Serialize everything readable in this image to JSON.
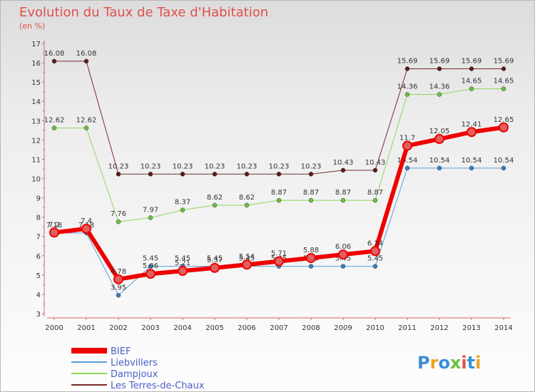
{
  "title": "Evolution du Taux de Taxe d'Habitation",
  "unit_label": "(en %)",
  "logo_text": "Proxiti",
  "colors": {
    "title": "#e0504a",
    "grid": "#cccccc",
    "bief": "#ee0000",
    "bief_dot": "#e06060",
    "liebvillers": "#5a9fd6",
    "liebvillers_dot": "#3a7fc4",
    "dampjoux": "#8fd65a",
    "dampjoux_dot": "#6cc23a",
    "terres": "#7a2a2a",
    "terres_dot": "#5c1a1a"
  },
  "chart_data": {
    "type": "line",
    "title": "Evolution du Taux de Taxe d'Habitation",
    "ylabel": "(en %)",
    "xlabel": "",
    "categories": [
      "2000",
      "2001",
      "2002",
      "2003",
      "2004",
      "2005",
      "2006",
      "2007",
      "2008",
      "2009",
      "2010",
      "2011",
      "2012",
      "2013",
      "2014"
    ],
    "ylim": [
      3,
      17
    ],
    "yticks": [
      "3",
      "4",
      "5",
      "6",
      "7",
      "8",
      "9",
      "10",
      "11",
      "12",
      "13",
      "14",
      "15",
      "16",
      "17"
    ],
    "grid": false,
    "legend": "bottom-left",
    "series": [
      {
        "name": "Les Terres-de-Chaux",
        "color_key": "terres",
        "width": 1,
        "values": [
          16.08,
          16.08,
          10.23,
          10.23,
          10.23,
          10.23,
          10.23,
          10.23,
          10.23,
          10.43,
          10.43,
          15.69,
          15.69,
          15.69,
          15.69
        ],
        "labels": [
          "16.08",
          "16.08",
          "10.23",
          "10.23",
          "10.23",
          "10.23",
          "10.23",
          "10.23",
          "10.23",
          "10.43",
          "10.43",
          "15.69",
          "15.69",
          "15.69",
          "15.69"
        ]
      },
      {
        "name": "Dampjoux",
        "color_key": "dampjoux",
        "width": 1,
        "values": [
          12.62,
          12.62,
          7.76,
          7.97,
          8.37,
          8.62,
          8.62,
          8.87,
          8.87,
          8.87,
          8.87,
          14.36,
          14.36,
          14.65,
          14.65
        ],
        "labels": [
          "12.62",
          "12.62",
          "7.76",
          "7.97",
          "8.37",
          "8.62",
          "8.62",
          "8.87",
          "8.87",
          "8.87",
          "8.87",
          "14.36",
          "14.36",
          "14.65",
          "14.65"
        ]
      },
      {
        "name": "Liebvillers",
        "color_key": "liebvillers",
        "width": 1,
        "values": [
          7.18,
          7.18,
          3.95,
          5.45,
          5.45,
          5.45,
          5.45,
          5.45,
          5.45,
          5.45,
          5.45,
          10.54,
          10.54,
          10.54,
          10.54
        ],
        "labels": [
          "7.18",
          "7.18",
          "3.95",
          "5.45",
          "5.45",
          "5.45",
          "5.45",
          "5.45",
          "5.45",
          "5.45",
          "5.45",
          "10.54",
          "10.54",
          "10.54",
          "10.54"
        ]
      },
      {
        "name": "BIEF",
        "color_key": "bief",
        "width": 6,
        "values": [
          7.2,
          7.4,
          4.78,
          5.06,
          5.21,
          5.37,
          5.54,
          5.71,
          5.88,
          6.06,
          6.24,
          11.7,
          12.05,
          12.41,
          12.65
        ],
        "labels": [
          "7.2",
          "7.4",
          "4.78",
          "5.06",
          "5.21",
          "5.37",
          "5.54",
          "5.71",
          "5.88",
          "6.06",
          "6.24",
          "11.7",
          "12.05",
          "12.41",
          "12.65"
        ]
      }
    ],
    "legend_order": [
      "BIEF",
      "Liebvillers",
      "Dampjoux",
      "Les Terres-de-Chaux"
    ]
  }
}
